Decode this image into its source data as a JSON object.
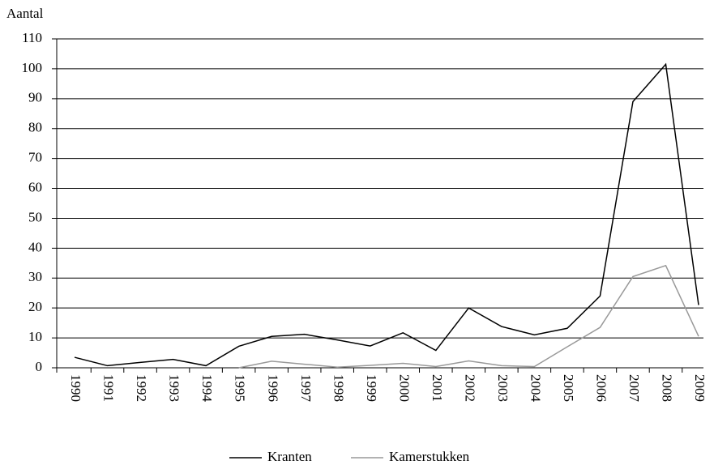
{
  "chart_data": {
    "type": "line",
    "y_axis_label": "Aantal",
    "categories": [
      "1990",
      "1991",
      "1992",
      "1993",
      "1994",
      "1995",
      "1996",
      "1997",
      "1998",
      "1999",
      "2000",
      "2001",
      "2002",
      "2003",
      "2004",
      "2005",
      "2006",
      "2007",
      "2008",
      "2009"
    ],
    "series": [
      {
        "name": "Kranten",
        "color": "#000000",
        "values": [
          3.5,
          0.7,
          1.8,
          2.8,
          0.7,
          7.2,
          10.5,
          11.2,
          9.3,
          7.3,
          11.7,
          5.8,
          20,
          13.8,
          11,
          13.2,
          24,
          89,
          101.5,
          21
        ]
      },
      {
        "name": "Kamerstukken",
        "color": "#999999",
        "values": [
          null,
          null,
          null,
          null,
          null,
          0,
          2.2,
          1.2,
          0.2,
          0.8,
          1.5,
          0.4,
          2.3,
          0.7,
          0.4,
          7,
          13.5,
          30.5,
          34.2,
          10.5
        ]
      }
    ],
    "ylim": [
      0,
      110
    ],
    "yticks": [
      0,
      10,
      20,
      30,
      40,
      50,
      60,
      70,
      80,
      90,
      100,
      110
    ],
    "grid": true,
    "legend": "bottom"
  }
}
